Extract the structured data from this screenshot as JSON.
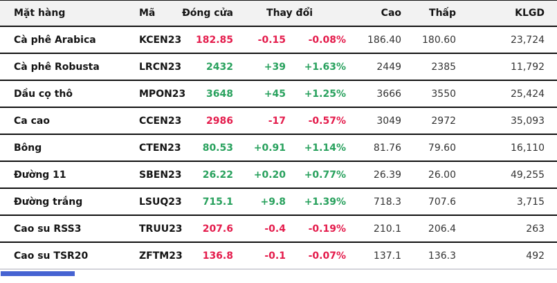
{
  "table": {
    "columns": {
      "name": "Mặt hàng",
      "code": "Mã",
      "close": "Đóng cửa",
      "change": "Thay đổi",
      "high": "Cao",
      "low": "Thấp",
      "volume": "KLGD"
    },
    "rows": [
      {
        "name": "Cà phê Arabica",
        "code": "KCEN23",
        "close": "182.85",
        "change": "-0.15",
        "change_pct": "-0.08%",
        "high": "186.40",
        "low": "180.60",
        "volume": "23,724",
        "direction": "down"
      },
      {
        "name": "Cà phê Robusta",
        "code": "LRCN23",
        "close": "2432",
        "change": "+39",
        "change_pct": "+1.63%",
        "high": "2449",
        "low": "2385",
        "volume": "11,792",
        "direction": "up"
      },
      {
        "name": "Dầu cọ thô",
        "code": "MPON23",
        "close": "3648",
        "change": "+45",
        "change_pct": "+1.25%",
        "high": "3666",
        "low": "3550",
        "volume": "25,424",
        "direction": "up"
      },
      {
        "name": "Ca cao",
        "code": "CCEN23",
        "close": "2986",
        "change": "-17",
        "change_pct": "-0.57%",
        "high": "3049",
        "low": "2972",
        "volume": "35,093",
        "direction": "down"
      },
      {
        "name": "Bông",
        "code": "CTEN23",
        "close": "80.53",
        "change": "+0.91",
        "change_pct": "+1.14%",
        "high": "81.76",
        "low": "79.60",
        "volume": "16,110",
        "direction": "up"
      },
      {
        "name": "Đường 11",
        "code": "SBEN23",
        "close": "26.22",
        "change": "+0.20",
        "change_pct": "+0.77%",
        "high": "26.39",
        "low": "26.00",
        "volume": "49,255",
        "direction": "up"
      },
      {
        "name": "Đường trắng",
        "code": "LSUQ23",
        "close": "715.1",
        "change": "+9.8",
        "change_pct": "+1.39%",
        "high": "718.3",
        "low": "707.6",
        "volume": "3,715",
        "direction": "up"
      },
      {
        "name": "Cao su RSS3",
        "code": "TRUU23",
        "close": "207.6",
        "change": "-0.4",
        "change_pct": "-0.19%",
        "high": "210.1",
        "low": "206.4",
        "volume": "263",
        "direction": "down"
      },
      {
        "name": "Cao su TSR20",
        "code": "ZFTM23",
        "close": "136.8",
        "change": "-0.1",
        "change_pct": "-0.07%",
        "high": "137.1",
        "low": "136.3",
        "volume": "492",
        "direction": "down"
      }
    ]
  },
  "colors": {
    "up": "#28a15d",
    "down": "#e41c4c",
    "header_bg": "#f2f2f2",
    "border": "#111111",
    "divider": "#d4d4da",
    "bottom_bar": "#4663d2"
  }
}
